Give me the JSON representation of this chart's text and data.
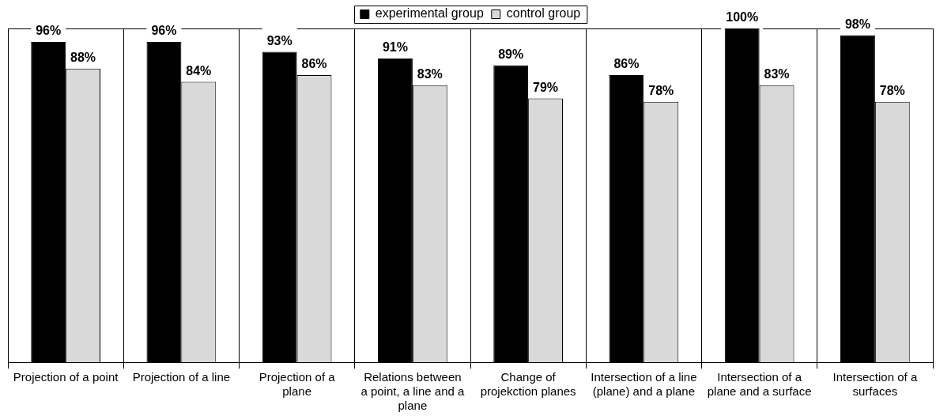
{
  "chart_data": {
    "type": "bar",
    "categories": [
      "Projection of a point",
      "Projection of a line",
      "Projection of a plane",
      "Relations between a point, a line and a plane",
      "Change of projekction planes",
      "Intersection of a line (plane) and a plane",
      "Intersection of a plane and a surface",
      "Intersection of a surfaces"
    ],
    "series": [
      {
        "name": "experimental group",
        "color": "#000000",
        "values": [
          96,
          96,
          93,
          91,
          89,
          86,
          100,
          98
        ],
        "value_labels": [
          "96%",
          "96%",
          "93%",
          "91%",
          "89%",
          "86%",
          "100%",
          "98%"
        ]
      },
      {
        "name": "control group",
        "color": "#d9d9d9",
        "values": [
          88,
          84,
          86,
          83,
          79,
          78,
          83,
          78
        ],
        "value_labels": [
          "88%",
          "84%",
          "86%",
          "83%",
          "79%",
          "78%",
          "83%",
          "78%"
        ]
      }
    ],
    "ylim": [
      0,
      100
    ],
    "grid": "x",
    "legend": "top",
    "tick_labels": "x"
  }
}
